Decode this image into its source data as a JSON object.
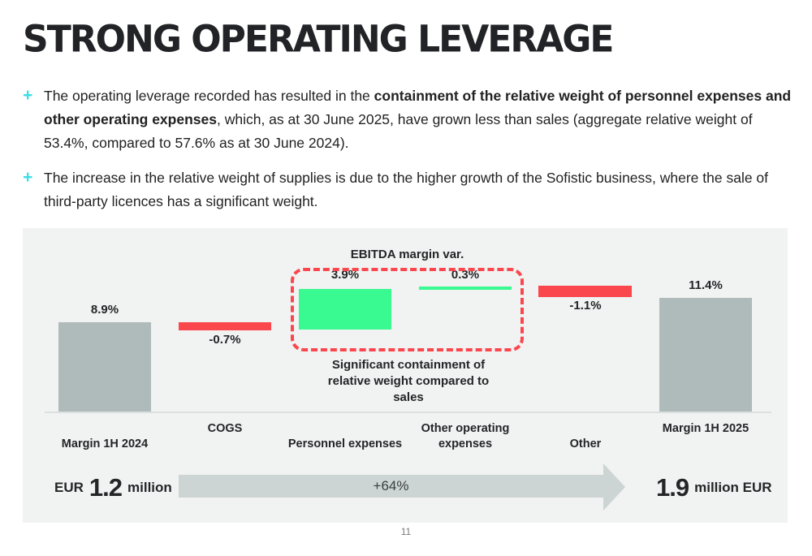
{
  "slide": {
    "title": "STRONG OPERATING LEVERAGE",
    "page_number": "11",
    "accent_color": "#3edde6"
  },
  "bullets": [
    {
      "marker": "+",
      "pre": "The operating leverage recorded has resulted in the ",
      "bold": "containment of the relative weight of personnel expenses and other operating expenses",
      "post": ", which, as at 30 June 2025, have grown less than sales (aggregate relative weight of 53.4%, compared to 57.6% as at 30 June 2024)."
    },
    {
      "marker": "+",
      "pre": "The increase in the relative weight of supplies is due to the higher growth of the Sofistic business, where the sale of third-party licences has a significant weight.",
      "bold": "",
      "post": ""
    }
  ],
  "chart_data": {
    "type": "bar",
    "subtype": "waterfall",
    "categories": [
      "Margin 1H 2024",
      "COGS",
      "Personnel expenses",
      "Other operating expenses",
      "Other",
      "Margin 1H 2025"
    ],
    "values": [
      8.9,
      -0.7,
      3.9,
      0.3,
      -1.1,
      11.4
    ],
    "labels": [
      "8.9%",
      "-0.7%",
      "3.9%",
      "0.3%",
      "-1.1%",
      "11.4%"
    ],
    "bar_colors": [
      "#afbaba",
      "#fa474e",
      "#39fa90",
      "#39fa90",
      "#fa474e",
      "#afbaba"
    ],
    "title": "",
    "xlabel": "",
    "ylabel": "",
    "ylim": [
      0,
      13
    ],
    "grid": false,
    "legend": "none",
    "annotation_box_title": "EBITDA margin var.",
    "caption_line1": "Significant containment of",
    "caption_line2": "relative weight compared to sales",
    "bridge": {
      "start_value_eur_million": 1.2,
      "end_value_eur_million": 1.9,
      "growth_pct": 64
    }
  },
  "footer": {
    "start_currency": "EUR",
    "start_value": "1.2",
    "start_unit": "million",
    "arrow_label": "+64%",
    "end_value": "1.9",
    "end_unit": "million EUR"
  },
  "colors": {
    "positive_green": "#39fa90",
    "negative_red": "#fa474e",
    "neutral_gray": "#afbaba",
    "panel_bg": "#f1f2f2",
    "arrow_gray": "#ccd5d3"
  }
}
